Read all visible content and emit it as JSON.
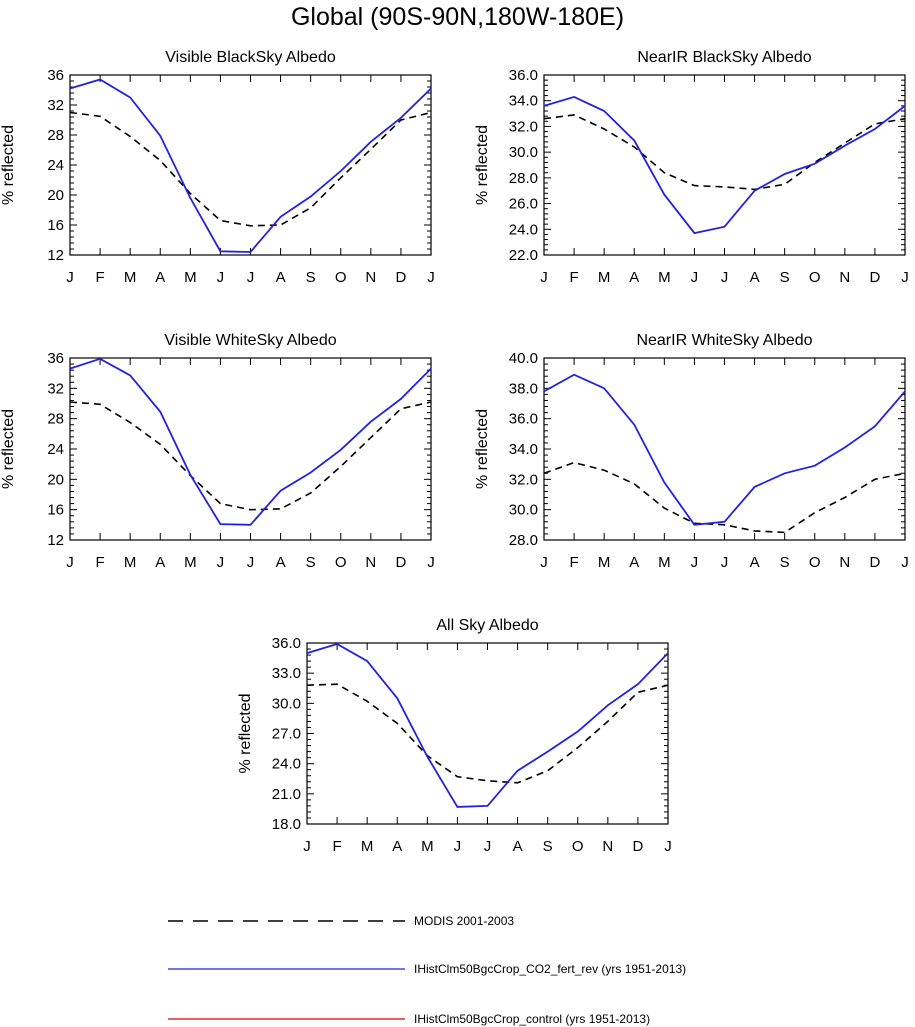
{
  "title": "Global (90S-90N,180W-180E)",
  "legend": [
    {
      "label": "MODIS 2001-2003",
      "color": "#000000",
      "dash": true
    },
    {
      "label": "IHistClm50BgcCrop_CO2_fert_rev (yrs 1951-2013)",
      "color": "#2222dd",
      "dash": false
    },
    {
      "label": "IHistClm50BgcCrop_control (yrs 1951-2013)",
      "color": "#dd0000",
      "dash": false
    }
  ],
  "chart_data": [
    {
      "type": "line",
      "title": "Visible BlackSky Albedo",
      "ylabel": "% reflected",
      "x": [
        "J",
        "F",
        "M",
        "A",
        "M",
        "J",
        "J",
        "A",
        "S",
        "O",
        "N",
        "D",
        "J"
      ],
      "ylim": [
        12,
        36
      ],
      "yticks": [
        "12",
        "16",
        "20",
        "24",
        "28",
        "32",
        "36"
      ],
      "series": [
        {
          "name": "MODIS 2001-2003",
          "values": [
            31.0,
            30.5,
            27.8,
            24.6,
            20.2,
            16.6,
            15.9,
            16.0,
            18.3,
            22.3,
            26.1,
            30.0,
            31.0
          ]
        },
        {
          "name": "IHistClm50BgcCrop_CO2_fert_rev (yrs 1951-2013)",
          "values": [
            34.2,
            35.4,
            33.0,
            27.9,
            19.6,
            12.5,
            12.4,
            17.1,
            19.8,
            23.2,
            27.1,
            30.3,
            34.2
          ]
        }
      ]
    },
    {
      "type": "line",
      "title": "NearIR BlackSky Albedo",
      "ylabel": "% reflected",
      "x": [
        "J",
        "F",
        "M",
        "A",
        "M",
        "J",
        "J",
        "A",
        "S",
        "O",
        "N",
        "D",
        "J"
      ],
      "ylim": [
        22,
        36
      ],
      "yticks": [
        "22.0",
        "24.0",
        "26.0",
        "28.0",
        "30.0",
        "32.0",
        "34.0",
        "36.0"
      ],
      "series": [
        {
          "name": "MODIS 2001-2003",
          "values": [
            32.6,
            32.9,
            31.8,
            30.4,
            28.4,
            27.4,
            27.3,
            27.1,
            27.5,
            29.2,
            30.7,
            32.2,
            32.6
          ]
        },
        {
          "name": "IHistClm50BgcCrop_CO2_fert_rev (yrs 1951-2013)",
          "values": [
            33.6,
            34.3,
            33.2,
            30.9,
            26.7,
            23.7,
            24.2,
            27.0,
            28.3,
            29.1,
            30.5,
            31.8,
            33.6
          ]
        }
      ]
    },
    {
      "type": "line",
      "title": "Visible WhiteSky Albedo",
      "ylabel": "% reflected",
      "x": [
        "J",
        "F",
        "M",
        "A",
        "M",
        "J",
        "J",
        "A",
        "S",
        "O",
        "N",
        "D",
        "J"
      ],
      "ylim": [
        12,
        36
      ],
      "yticks": [
        "12",
        "16",
        "20",
        "24",
        "28",
        "32",
        "36"
      ],
      "series": [
        {
          "name": "MODIS 2001-2003",
          "values": [
            30.2,
            29.9,
            27.5,
            24.6,
            20.5,
            16.8,
            16.0,
            16.1,
            18.2,
            21.7,
            25.5,
            29.3,
            30.2
          ]
        },
        {
          "name": "IHistClm50BgcCrop_CO2_fert_rev (yrs 1951-2013)",
          "values": [
            34.6,
            35.9,
            33.7,
            28.9,
            20.6,
            14.1,
            14.0,
            18.5,
            20.9,
            23.9,
            27.6,
            30.6,
            34.6
          ]
        }
      ]
    },
    {
      "type": "line",
      "title": "NearIR WhiteSky Albedo",
      "ylabel": "% reflected",
      "x": [
        "J",
        "F",
        "M",
        "A",
        "M",
        "J",
        "J",
        "A",
        "S",
        "O",
        "N",
        "D",
        "J"
      ],
      "ylim": [
        28,
        40
      ],
      "yticks": [
        "28.0",
        "30.0",
        "32.0",
        "34.0",
        "36.0",
        "38.0",
        "40.0"
      ],
      "series": [
        {
          "name": "MODIS 2001-2003",
          "values": [
            32.4,
            33.1,
            32.6,
            31.7,
            30.1,
            29.1,
            29.0,
            28.6,
            28.5,
            29.8,
            30.8,
            32.0,
            32.4
          ]
        },
        {
          "name": "IHistClm50BgcCrop_CO2_fert_rev (yrs 1951-2013)",
          "values": [
            37.8,
            38.9,
            38.0,
            35.6,
            31.8,
            29.0,
            29.2,
            31.5,
            32.4,
            32.9,
            34.1,
            35.5,
            37.8
          ]
        }
      ]
    },
    {
      "type": "line",
      "title": "All Sky Albedo",
      "ylabel": "% reflected",
      "x": [
        "J",
        "F",
        "M",
        "A",
        "M",
        "J",
        "J",
        "A",
        "S",
        "O",
        "N",
        "D",
        "J"
      ],
      "ylim": [
        18,
        36
      ],
      "yticks": [
        "18.0",
        "21.0",
        "24.0",
        "27.0",
        "30.0",
        "33.0",
        "36.0"
      ],
      "series": [
        {
          "name": "MODIS 2001-2003",
          "values": [
            31.8,
            31.9,
            30.2,
            28.0,
            24.8,
            22.7,
            22.3,
            22.1,
            23.3,
            25.6,
            28.2,
            31.1,
            31.8
          ]
        },
        {
          "name": "IHistClm50BgcCrop_CO2_fert_rev (yrs 1951-2013)",
          "values": [
            35.0,
            35.9,
            34.2,
            30.5,
            24.7,
            19.7,
            19.8,
            23.3,
            25.2,
            27.2,
            29.8,
            31.9,
            35.0
          ]
        }
      ]
    }
  ]
}
